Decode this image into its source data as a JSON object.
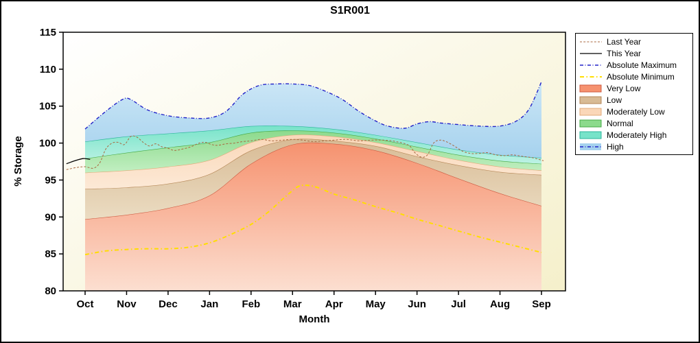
{
  "title": "S1R001",
  "axes": {
    "x_label": "Month",
    "y_label": "% Storage",
    "x_ticks": [
      "Oct",
      "Nov",
      "Dec",
      "Jan",
      "Feb",
      "Mar",
      "Apr",
      "May",
      "Jun",
      "Jul",
      "Aug",
      "Sep"
    ],
    "y_ticks": [
      80,
      85,
      90,
      95,
      100,
      105,
      110,
      115
    ]
  },
  "legend": {
    "items": [
      {
        "kind": "line",
        "ref": "last_year"
      },
      {
        "kind": "line",
        "ref": "this_year"
      },
      {
        "kind": "line",
        "ref": "abs_max"
      },
      {
        "kind": "line",
        "ref": "abs_min"
      },
      {
        "kind": "band",
        "ref": 0
      },
      {
        "kind": "band",
        "ref": 1
      },
      {
        "kind": "band",
        "ref": 2
      },
      {
        "kind": "band",
        "ref": 3
      },
      {
        "kind": "band",
        "ref": 4
      },
      {
        "kind": "band_line",
        "ref": 5
      }
    ]
  },
  "chart_data": {
    "type": "area",
    "title": "S1R001",
    "xlabel": "Month",
    "ylabel": "% Storage",
    "x_categories": [
      "Oct",
      "Nov",
      "Dec",
      "Jan",
      "Feb",
      "Mar",
      "Apr",
      "May",
      "Jun",
      "Jul",
      "Aug",
      "Sep"
    ],
    "ylim": [
      80,
      115
    ],
    "plot_bg": [
      "#FFFFFF",
      "#F5F0CB"
    ],
    "bands": [
      {
        "name": "Very Low",
        "fill": [
          "#F6926F",
          "#FCE0D2"
        ],
        "line": "#CD5B41",
        "values": [
          89.7,
          90.3,
          91.2,
          92.9,
          97.2,
          99.8,
          99.9,
          99.0,
          97.3,
          95.2,
          93.2,
          91.5
        ]
      },
      {
        "name": "Low",
        "fill": [
          "#D8BB95",
          "#EBDCC2"
        ],
        "line": "#B58655",
        "values": [
          93.8,
          94.0,
          94.5,
          95.8,
          99.0,
          100.5,
          100.3,
          99.6,
          98.2,
          97.0,
          96.1,
          95.7
        ]
      },
      {
        "name": "Moderately Low",
        "fill": [
          "#FAD7B8",
          "#FCE9D6"
        ],
        "line": "#E2A977",
        "values": [
          96.0,
          96.3,
          96.8,
          97.7,
          100.1,
          101.1,
          100.9,
          100.1,
          98.9,
          97.7,
          96.8,
          96.3
        ]
      },
      {
        "name": "Normal",
        "fill": [
          "#8CDA8C",
          "#C2EFC2"
        ],
        "line": "#44A944",
        "values": [
          97.9,
          98.7,
          99.4,
          100.1,
          101.4,
          101.7,
          101.4,
          100.6,
          99.5,
          98.4,
          97.6,
          97.2
        ]
      },
      {
        "name": "Moderately High",
        "fill": [
          "#77E3C9",
          "#BDF2E4"
        ],
        "line": "#2BB59A",
        "values": [
          100.2,
          100.9,
          101.3,
          101.7,
          102.3,
          102.3,
          101.9,
          101.1,
          100.1,
          99.1,
          98.4,
          98.0
        ]
      },
      {
        "name": "High",
        "fill": [
          "#CBE6F6",
          "#A6D2EE"
        ],
        "line": "none",
        "top_ref": "abs_max"
      }
    ],
    "lines": {
      "last_year": {
        "label": "Last Year",
        "color": "#A9683F",
        "width": 1,
        "dash": [
          3,
          2.2
        ],
        "points": [
          [
            -0.45,
            96.4
          ],
          [
            -0.2,
            96.7
          ],
          [
            0,
            96.8
          ],
          [
            0.2,
            96.6
          ],
          [
            0.35,
            97.3
          ],
          [
            0.5,
            99.2
          ],
          [
            0.65,
            100.0
          ],
          [
            0.8,
            100.1
          ],
          [
            0.95,
            99.8
          ],
          [
            1.1,
            100.9
          ],
          [
            1.25,
            100.8
          ],
          [
            1.4,
            100.1
          ],
          [
            1.55,
            99.6
          ],
          [
            1.7,
            99.9
          ],
          [
            1.85,
            99.5
          ],
          [
            2,
            99.3
          ],
          [
            2.15,
            99.0
          ],
          [
            2.35,
            99.2
          ],
          [
            2.55,
            99.5
          ],
          [
            2.75,
            100.0
          ],
          [
            2.9,
            100.1
          ],
          [
            3.05,
            99.8
          ],
          [
            3.2,
            99.7
          ],
          [
            3.4,
            99.9
          ],
          [
            3.6,
            100.0
          ],
          [
            3.8,
            100.2
          ],
          [
            4,
            100.3
          ],
          [
            4.25,
            100.5
          ],
          [
            4.5,
            100.3
          ],
          [
            4.75,
            100.4
          ],
          [
            5,
            100.5
          ],
          [
            5.25,
            100.4
          ],
          [
            5.5,
            100.2
          ],
          [
            5.75,
            100.3
          ],
          [
            6,
            100.4
          ],
          [
            6.3,
            100.5
          ],
          [
            6.6,
            100.3
          ],
          [
            6.9,
            100.4
          ],
          [
            7.2,
            100.4
          ],
          [
            7.5,
            100.2
          ],
          [
            7.8,
            99.7
          ],
          [
            7.95,
            98.7
          ],
          [
            8.1,
            98.1
          ],
          [
            8.25,
            98.4
          ],
          [
            8.4,
            100.0
          ],
          [
            8.55,
            100.4
          ],
          [
            8.7,
            100.2
          ],
          [
            8.9,
            99.6
          ],
          [
            9.1,
            98.9
          ],
          [
            9.3,
            98.6
          ],
          [
            9.5,
            98.6
          ],
          [
            9.7,
            98.7
          ],
          [
            9.9,
            98.4
          ],
          [
            10.1,
            98.3
          ],
          [
            10.3,
            98.4
          ],
          [
            10.55,
            98.2
          ],
          [
            10.8,
            98.0
          ],
          [
            11.05,
            97.6
          ]
        ]
      },
      "this_year": {
        "label": "This Year",
        "color": "#000000",
        "width": 1.3,
        "dash": [],
        "points": [
          [
            -0.45,
            97.2
          ],
          [
            -0.25,
            97.6
          ],
          [
            -0.05,
            97.9
          ],
          [
            0.12,
            97.8
          ]
        ]
      },
      "abs_max": {
        "label": "Absolute Maximum",
        "color": "#2121C8",
        "width": 1.4,
        "dash": [
          5,
          2.5,
          1,
          2.5
        ],
        "points": [
          [
            0,
            101.9
          ],
          [
            0.5,
            104.3
          ],
          [
            0.9,
            105.9
          ],
          [
            1.1,
            105.9
          ],
          [
            1.5,
            104.5
          ],
          [
            2,
            103.7
          ],
          [
            2.5,
            103.4
          ],
          [
            3,
            103.4
          ],
          [
            3.4,
            104.3
          ],
          [
            3.8,
            106.6
          ],
          [
            4.2,
            107.8
          ],
          [
            4.6,
            108.0
          ],
          [
            5,
            108.0
          ],
          [
            5.4,
            107.8
          ],
          [
            5.8,
            107.0
          ],
          [
            6.2,
            105.9
          ],
          [
            6.6,
            104.3
          ],
          [
            7,
            103.0
          ],
          [
            7.3,
            102.3
          ],
          [
            7.7,
            102.0
          ],
          [
            8,
            102.6
          ],
          [
            8.3,
            102.9
          ],
          [
            8.6,
            102.7
          ],
          [
            9,
            102.5
          ],
          [
            9.5,
            102.3
          ],
          [
            10,
            102.3
          ],
          [
            10.4,
            103.0
          ],
          [
            10.7,
            104.6
          ],
          [
            11,
            108.3
          ]
        ]
      },
      "abs_min": {
        "label": "Absolute Minimum",
        "color": "#FFDE00",
        "width": 2,
        "dash": [
          6,
          3.5,
          1.5,
          3.5
        ],
        "points": [
          [
            0,
            84.9
          ],
          [
            0.5,
            85.4
          ],
          [
            1,
            85.6
          ],
          [
            1.5,
            85.7
          ],
          [
            2,
            85.7
          ],
          [
            2.5,
            85.9
          ],
          [
            3,
            86.5
          ],
          [
            3.5,
            87.6
          ],
          [
            4,
            89.0
          ],
          [
            4.4,
            90.6
          ],
          [
            4.8,
            92.6
          ],
          [
            5.1,
            94.0
          ],
          [
            5.3,
            94.3
          ],
          [
            5.6,
            94.0
          ],
          [
            6,
            93.1
          ],
          [
            6.5,
            92.3
          ],
          [
            7,
            91.4
          ],
          [
            7.5,
            90.6
          ],
          [
            8,
            89.7
          ],
          [
            8.5,
            88.9
          ],
          [
            9,
            88.1
          ],
          [
            9.5,
            87.3
          ],
          [
            10,
            86.6
          ],
          [
            10.5,
            85.9
          ],
          [
            11,
            85.2
          ]
        ]
      }
    }
  }
}
